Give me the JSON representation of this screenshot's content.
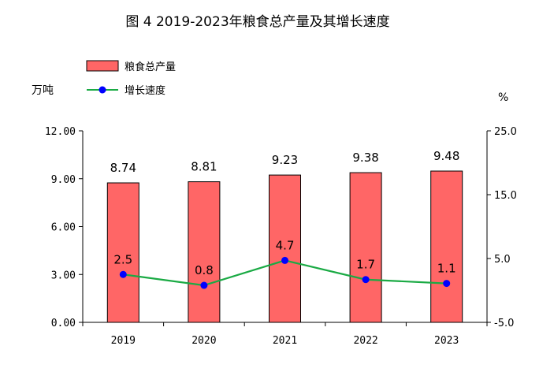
{
  "chart_data": {
    "type": "bar",
    "title": "图 4 2019-2023年粮食总产量及其增长速度",
    "categories": [
      "2019",
      "2020",
      "2021",
      "2022",
      "2023"
    ],
    "series": [
      {
        "name": "粮食总产量",
        "type": "bar",
        "axis": "left",
        "color": "#FF6666",
        "values": [
          8.74,
          8.81,
          9.23,
          9.38,
          9.48
        ],
        "labels": [
          "8.74",
          "8.81",
          "9.23",
          "9.38",
          "9.48"
        ]
      },
      {
        "name": "增长速度",
        "type": "line",
        "axis": "right",
        "color": "#1AAA44",
        "marker_color": "#0000FF",
        "values": [
          2.5,
          0.8,
          4.7,
          1.7,
          1.1
        ],
        "labels": [
          "2.5",
          "0.8",
          "4.7",
          "1.7",
          "1.1"
        ]
      }
    ],
    "y_left": {
      "unit": "万吨",
      "range": [
        0,
        12
      ],
      "ticks": [
        "0.00",
        "3.00",
        "6.00",
        "9.00",
        "12.00"
      ]
    },
    "y_right": {
      "unit": "%",
      "range": [
        -5,
        25
      ],
      "ticks": [
        "-5.0",
        "5.0",
        "15.0",
        "25.0"
      ]
    },
    "legend_placement": "top-left",
    "grid": false
  }
}
